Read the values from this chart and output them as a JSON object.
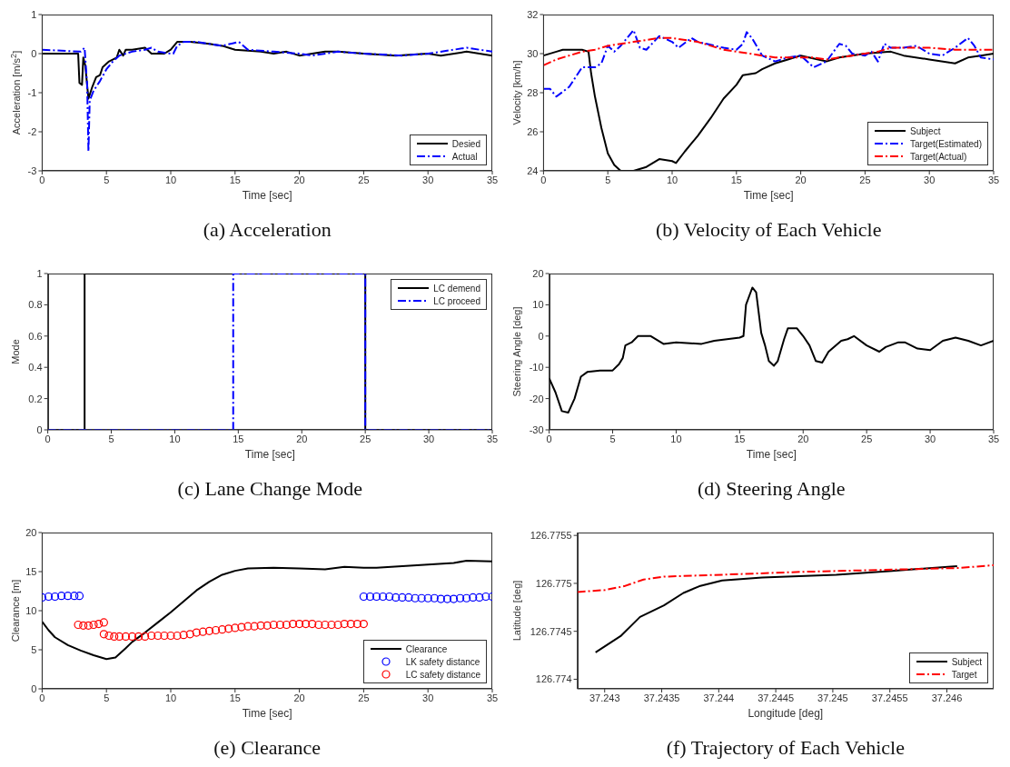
{
  "chart_data": [
    {
      "type": "line",
      "title": "(a) Acceleration",
      "xlabel": "Time [sec]",
      "ylabel": "Acceleration [m/s$^{2}$]",
      "xlim": [
        0,
        35
      ],
      "xticks": [
        0,
        5,
        10,
        15,
        20,
        25,
        30,
        35
      ],
      "ylim": [
        -3,
        1
      ],
      "yticks": [
        -3,
        -2,
        -1,
        0,
        1
      ],
      "legend": "bottom right",
      "series": [
        {
          "name": "Desied",
          "color": "#000000",
          "line_style": "solid",
          "x": [
            0,
            2.8,
            2.9,
            3.1,
            3.2,
            3.35,
            3.6,
            3.9,
            4.2,
            4.5,
            4.7,
            5.2,
            5.8,
            6,
            6.3,
            6.5,
            7,
            8,
            8.5,
            9.5,
            10,
            10.5,
            11.5,
            13,
            14,
            15,
            17,
            18,
            19,
            20,
            22,
            23,
            25,
            27.5,
            30,
            31,
            33,
            35
          ],
          "values": [
            0,
            0,
            -0.75,
            -0.8,
            -0.1,
            -0.3,
            -1.15,
            -0.85,
            -0.6,
            -0.55,
            -0.35,
            -0.2,
            -0.1,
            0.1,
            -0.05,
            0.1,
            0.1,
            0.15,
            0,
            0,
            0.1,
            0.3,
            0.3,
            0.25,
            0.2,
            0.1,
            0.05,
            0,
            0.05,
            -0.05,
            0.05,
            0.05,
            0,
            -0.05,
            0,
            -0.05,
            0.05,
            -0.05
          ]
        },
        {
          "name": "Actual",
          "color": "#0000ff",
          "line_style": "dashed",
          "x": [
            0,
            3,
            3.3,
            3.5,
            3.6,
            3.7,
            4,
            4.5,
            5,
            5.5,
            6,
            7,
            8,
            8.5,
            9,
            10,
            10.2,
            10.5,
            11,
            12,
            13,
            14,
            15.3,
            16,
            18,
            20,
            21,
            23,
            25,
            28,
            30,
            33,
            35
          ],
          "values": [
            0.1,
            0.05,
            0.15,
            -0.8,
            -2.5,
            -1.2,
            -0.95,
            -0.7,
            -0.4,
            -0.2,
            -0.05,
            0.05,
            0.1,
            0.15,
            0.05,
            0,
            0,
            0.2,
            0.3,
            0.3,
            0.25,
            0.2,
            0.3,
            0.1,
            0.05,
            0,
            -0.05,
            0.05,
            0,
            -0.05,
            0,
            0.15,
            0.05
          ]
        }
      ]
    },
    {
      "type": "line",
      "title": "(b) Velocity of Each Vehicle",
      "xlabel": "Time [sec]",
      "ylabel": "Velocity [km/h]",
      "xlim": [
        0,
        35
      ],
      "xticks": [
        0,
        5,
        10,
        15,
        20,
        25,
        30,
        35
      ],
      "ylim": [
        24,
        32
      ],
      "yticks": [
        24,
        26,
        28,
        30,
        32
      ],
      "legend": "bottom right",
      "series": [
        {
          "name": "Subject",
          "color": "#000000",
          "line_style": "solid",
          "x": [
            0,
            1,
            1.5,
            2,
            3,
            3.5,
            3.7,
            4,
            4.5,
            5,
            5.5,
            6,
            7,
            8,
            9,
            10,
            10.3,
            11,
            12,
            13,
            14,
            15,
            15.5,
            16.5,
            17,
            18,
            19,
            20,
            22,
            23,
            25,
            27,
            28,
            30,
            32,
            33,
            34,
            35
          ],
          "values": [
            29.9,
            30.1,
            30.2,
            30.2,
            30.2,
            30.1,
            29,
            27.8,
            26.2,
            24.9,
            24.3,
            24,
            24,
            24.2,
            24.6,
            24.5,
            24.4,
            25,
            25.8,
            26.7,
            27.7,
            28.4,
            28.9,
            29,
            29.2,
            29.5,
            29.7,
            29.9,
            29.6,
            29.8,
            30,
            30.1,
            29.9,
            29.7,
            29.5,
            29.8,
            29.9,
            30
          ]
        },
        {
          "name": "Target(Estimated)",
          "color": "#0000ff",
          "line_style": "dashed",
          "x": [
            0,
            0.5,
            1,
            2,
            3,
            4,
            4.5,
            5,
            5.5,
            6,
            7,
            7.5,
            8,
            9,
            10,
            10.5,
            11.5,
            12,
            14,
            15,
            15.5,
            15.8,
            16.2,
            17,
            18,
            19,
            20,
            21,
            22,
            23,
            23.5,
            24,
            25,
            25.5,
            26,
            26.5,
            27,
            28,
            29,
            30,
            31,
            32,
            33,
            33.5,
            34,
            35
          ],
          "values": [
            28.2,
            28.2,
            27.8,
            28.3,
            29.3,
            29.3,
            29.5,
            30.4,
            30.1,
            30.4,
            31.2,
            30.3,
            30.2,
            30.9,
            30.6,
            30.3,
            30.8,
            30.6,
            30.3,
            30.2,
            30.5,
            31.1,
            30.8,
            29.9,
            29.6,
            29.8,
            29.9,
            29.3,
            29.6,
            30.5,
            30.4,
            30,
            29.9,
            30.1,
            29.6,
            30.5,
            30.3,
            30.3,
            30.4,
            30,
            29.9,
            30.3,
            30.8,
            30.4,
            29.8,
            29.7
          ]
        },
        {
          "name": "Target(Actual)",
          "color": "#ff0000",
          "line_style": "dashed",
          "x": [
            0,
            1,
            2,
            3,
            4,
            5,
            6,
            7,
            8,
            9,
            10,
            11,
            12,
            13,
            14,
            15,
            16,
            17,
            18,
            20,
            21,
            22,
            23,
            24,
            25,
            26,
            27,
            28,
            30,
            32,
            35
          ],
          "values": [
            29.4,
            29.7,
            29.9,
            30.1,
            30.2,
            30.4,
            30.5,
            30.6,
            30.7,
            30.8,
            30.8,
            30.7,
            30.6,
            30.4,
            30.2,
            30.1,
            30,
            29.9,
            29.8,
            29.8,
            29.8,
            29.7,
            29.8,
            29.9,
            30,
            30.1,
            30.3,
            30.3,
            30.3,
            30.2,
            30.2
          ]
        }
      ]
    },
    {
      "type": "step",
      "title": "(c) Lane Change Mode",
      "xlabel": "Time [sec]",
      "ylabel": "Mode",
      "xlim": [
        0,
        35
      ],
      "xticks": [
        0,
        5,
        10,
        15,
        20,
        25,
        30,
        35
      ],
      "ylim": [
        0,
        1
      ],
      "yticks": [
        0,
        0.2,
        0.4,
        0.6,
        0.8,
        1
      ],
      "legend": "top right",
      "series": [
        {
          "name": "LC demend",
          "color": "#000000",
          "line_style": "solid",
          "x": [
            0,
            2.9,
            25,
            35
          ],
          "values": [
            0,
            1,
            0,
            0
          ]
        },
        {
          "name": "LC proceed",
          "color": "#0000ff",
          "line_style": "dashed",
          "x": [
            0,
            14.6,
            25,
            35
          ],
          "values": [
            0,
            1,
            0,
            0
          ]
        }
      ]
    },
    {
      "type": "line",
      "title": "(d) Steering Angle",
      "xlabel": "Time [sec]",
      "ylabel": "Steering Angle [deg]",
      "xlim": [
        0,
        35
      ],
      "xticks": [
        0,
        5,
        10,
        15,
        20,
        25,
        30,
        35
      ],
      "ylim": [
        -30,
        20
      ],
      "yticks": [
        -30,
        -20,
        -10,
        0,
        10,
        20
      ],
      "series": [
        {
          "color": "#000000",
          "line_style": "solid",
          "x": [
            0,
            0.5,
            1,
            1.5,
            2,
            2.5,
            3,
            4,
            5,
            5.5,
            5.8,
            6,
            6.5,
            7,
            8,
            9,
            10,
            12,
            13,
            14,
            15,
            15.3,
            15.5,
            16,
            16.3,
            16.7,
            17,
            17.3,
            17.7,
            18,
            18.5,
            18.8,
            19.5,
            20,
            20.5,
            21,
            21.5,
            22,
            23,
            23.5,
            24,
            25,
            26,
            26.5,
            27.5,
            28,
            29,
            30,
            31,
            32,
            33,
            34,
            35
          ],
          "values": [
            -13.5,
            -18,
            -24,
            -24.5,
            -20,
            -13,
            -11.5,
            -11,
            -11,
            -9,
            -7,
            -3,
            -2,
            0,
            0,
            -2.5,
            -2,
            -2.5,
            -1.5,
            -1,
            -0.5,
            0,
            10,
            15.5,
            14,
            1,
            -3,
            -8,
            -9.5,
            -8,
            -1,
            2.5,
            2.5,
            0,
            -3,
            -8,
            -8.5,
            -5,
            -1.5,
            -1,
            0,
            -3,
            -5,
            -3.5,
            -2,
            -2,
            -4,
            -4.5,
            -1.5,
            -0.5,
            -1.5,
            -3,
            -1.5
          ]
        }
      ]
    },
    {
      "type": "line",
      "title": "(e) Clearance",
      "xlabel": "Time [sec]",
      "ylabel": "Clearance [m]",
      "xlim": [
        0,
        35
      ],
      "xticks": [
        0,
        5,
        10,
        15,
        20,
        25,
        30,
        35
      ],
      "ylim": [
        0,
        20
      ],
      "yticks": [
        0,
        5,
        10,
        15,
        20
      ],
      "legend": "bottom right",
      "series": [
        {
          "name": "Clearance",
          "color": "#000000",
          "line_style": "solid",
          "x": [
            0,
            0.5,
            1,
            2,
            3,
            4,
            5,
            5.7,
            6.5,
            7,
            8,
            9,
            10,
            11,
            12,
            13,
            14,
            15,
            16,
            18,
            20,
            22,
            23.5,
            25,
            26,
            28,
            30,
            32,
            33,
            35
          ],
          "values": [
            8.6,
            7.5,
            6.6,
            5.6,
            4.9,
            4.3,
            3.8,
            4,
            5.2,
            6,
            7.2,
            8.5,
            9.8,
            11.2,
            12.6,
            13.7,
            14.6,
            15.1,
            15.4,
            15.5,
            15.4,
            15.3,
            15.6,
            15.5,
            15.5,
            15.7,
            15.9,
            16.1,
            16.4,
            16.3
          ]
        },
        {
          "name": "LK safety distance",
          "type": "scatter",
          "marker": "circle",
          "color": "#0000ff",
          "x": [
            0,
            0.5,
            1,
            1.5,
            2,
            2.5,
            2.9,
            25,
            25.5,
            26,
            26.5,
            27,
            27.5,
            28,
            28.5,
            29,
            29.5,
            30,
            30.5,
            31,
            31.5,
            32,
            32.5,
            33,
            33.5,
            34,
            34.5,
            35
          ],
          "values": [
            11.7,
            11.8,
            11.8,
            11.9,
            11.9,
            11.9,
            11.9,
            11.8,
            11.8,
            11.8,
            11.8,
            11.8,
            11.7,
            11.7,
            11.7,
            11.6,
            11.6,
            11.6,
            11.6,
            11.5,
            11.5,
            11.5,
            11.6,
            11.6,
            11.7,
            11.7,
            11.8,
            11.8
          ]
        },
        {
          "name": "LC safety distance",
          "type": "scatter",
          "marker": "circle",
          "color": "#ff0000",
          "x": [
            2.8,
            3.2,
            3.6,
            4,
            4.4,
            4.8,
            4.8,
            5.2,
            5.6,
            6,
            6.5,
            7,
            7.5,
            8,
            8.5,
            9,
            9.5,
            10,
            10.5,
            11,
            11.5,
            12,
            12.5,
            13,
            13.5,
            14,
            14.5,
            15,
            15.5,
            16,
            16.5,
            17,
            17.5,
            18,
            18.5,
            19,
            19.5,
            20,
            20.5,
            21,
            21.5,
            22,
            22.5,
            23,
            23.5,
            24,
            24.5,
            25
          ],
          "values": [
            8.2,
            8.1,
            8.1,
            8.2,
            8.3,
            8.5,
            7,
            6.8,
            6.7,
            6.7,
            6.7,
            6.7,
            6.7,
            6.7,
            6.8,
            6.8,
            6.8,
            6.8,
            6.8,
            6.9,
            7,
            7.2,
            7.3,
            7.4,
            7.5,
            7.6,
            7.7,
            7.8,
            7.9,
            8,
            8,
            8.1,
            8.1,
            8.2,
            8.2,
            8.2,
            8.3,
            8.3,
            8.3,
            8.3,
            8.2,
            8.2,
            8.2,
            8.2,
            8.3,
            8.3,
            8.3,
            8.3
          ]
        }
      ]
    },
    {
      "type": "line",
      "title": "(f) Trajectory of Each Vehicle",
      "xlabel": "Longitude [deg]",
      "ylabel": "Latitude [deg]",
      "xlim": [
        37.24276,
        37.24641
      ],
      "xticks": [
        37.243,
        37.2435,
        37.244,
        37.2445,
        37.245,
        37.2455,
        37.246
      ],
      "ylim": [
        126.7739,
        126.77553
      ],
      "yticks": [
        126.774,
        126.7745,
        126.775,
        126.7755
      ],
      "legend": "bottom right",
      "series": [
        {
          "name": "Subject",
          "color": "#000000",
          "line_style": "solid",
          "x": [
            37.24292,
            37.24314,
            37.24331,
            37.24352,
            37.24369,
            37.24383,
            37.24403,
            37.24438,
            37.24503,
            37.24552,
            37.24609
          ],
          "values": [
            126.77428,
            126.77445,
            126.77465,
            126.77477,
            126.7749,
            126.77497,
            126.77503,
            126.77506,
            126.77509,
            126.77513,
            126.77518
          ]
        },
        {
          "name": "Target",
          "color": "#ff0000",
          "line_style": "dashed",
          "x": [
            37.24276,
            37.243,
            37.24317,
            37.24334,
            37.24352,
            37.24403,
            37.24472,
            37.24541,
            37.2461,
            37.24641
          ],
          "values": [
            126.77491,
            126.77493,
            126.77497,
            126.77504,
            126.77507,
            126.77509,
            126.77512,
            126.77514,
            126.77516,
            126.77519
          ]
        }
      ]
    }
  ]
}
